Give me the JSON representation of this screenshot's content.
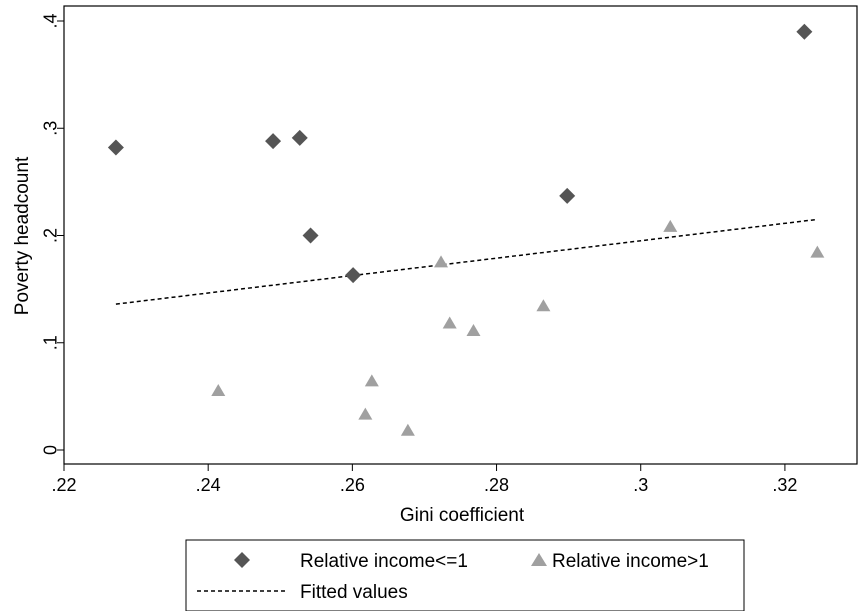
{
  "chart_data": {
    "type": "scatter",
    "title": "",
    "xlabel": "Gini coefficient",
    "ylabel": "Poverty headcount",
    "xlim": [
      0.22,
      0.33
    ],
    "ylim": [
      0,
      0.4
    ],
    "x_ticks": [
      0.22,
      0.24,
      0.26,
      0.28,
      0.3,
      0.32
    ],
    "x_tick_labels": [
      ".22",
      ".24",
      ".26",
      ".28",
      ".3",
      ".32"
    ],
    "y_ticks": [
      0,
      0.1,
      0.2,
      0.3,
      0.4
    ],
    "y_tick_labels": [
      "0",
      ".1",
      ".2",
      ".3",
      ".4"
    ],
    "grid": false,
    "legend_position": "bottom",
    "series": [
      {
        "name": "Relative income<=1",
        "marker": "diamond",
        "color": "#555555",
        "points": [
          {
            "x": 0.2272,
            "y": 0.282
          },
          {
            "x": 0.249,
            "y": 0.288
          },
          {
            "x": 0.2527,
            "y": 0.291
          },
          {
            "x": 0.2542,
            "y": 0.2
          },
          {
            "x": 0.2601,
            "y": 0.163
          },
          {
            "x": 0.2898,
            "y": 0.237
          },
          {
            "x": 0.3227,
            "y": 0.39
          }
        ]
      },
      {
        "name": "Relative income>1",
        "marker": "triangle",
        "color": "#a0a0a0",
        "points": [
          {
            "x": 0.2414,
            "y": 0.055
          },
          {
            "x": 0.2618,
            "y": 0.033
          },
          {
            "x": 0.2627,
            "y": 0.064
          },
          {
            "x": 0.2677,
            "y": 0.018
          },
          {
            "x": 0.2723,
            "y": 0.175
          },
          {
            "x": 0.2735,
            "y": 0.118
          },
          {
            "x": 0.2768,
            "y": 0.111
          },
          {
            "x": 0.2865,
            "y": 0.134
          },
          {
            "x": 0.3041,
            "y": 0.208
          },
          {
            "x": 0.3245,
            "y": 0.184
          }
        ]
      },
      {
        "name": "Fitted values",
        "marker": "dashed-line",
        "color": "#000000",
        "points": [
          {
            "x": 0.2272,
            "y": 0.136
          },
          {
            "x": 0.3245,
            "y": 0.215
          }
        ]
      }
    ]
  }
}
